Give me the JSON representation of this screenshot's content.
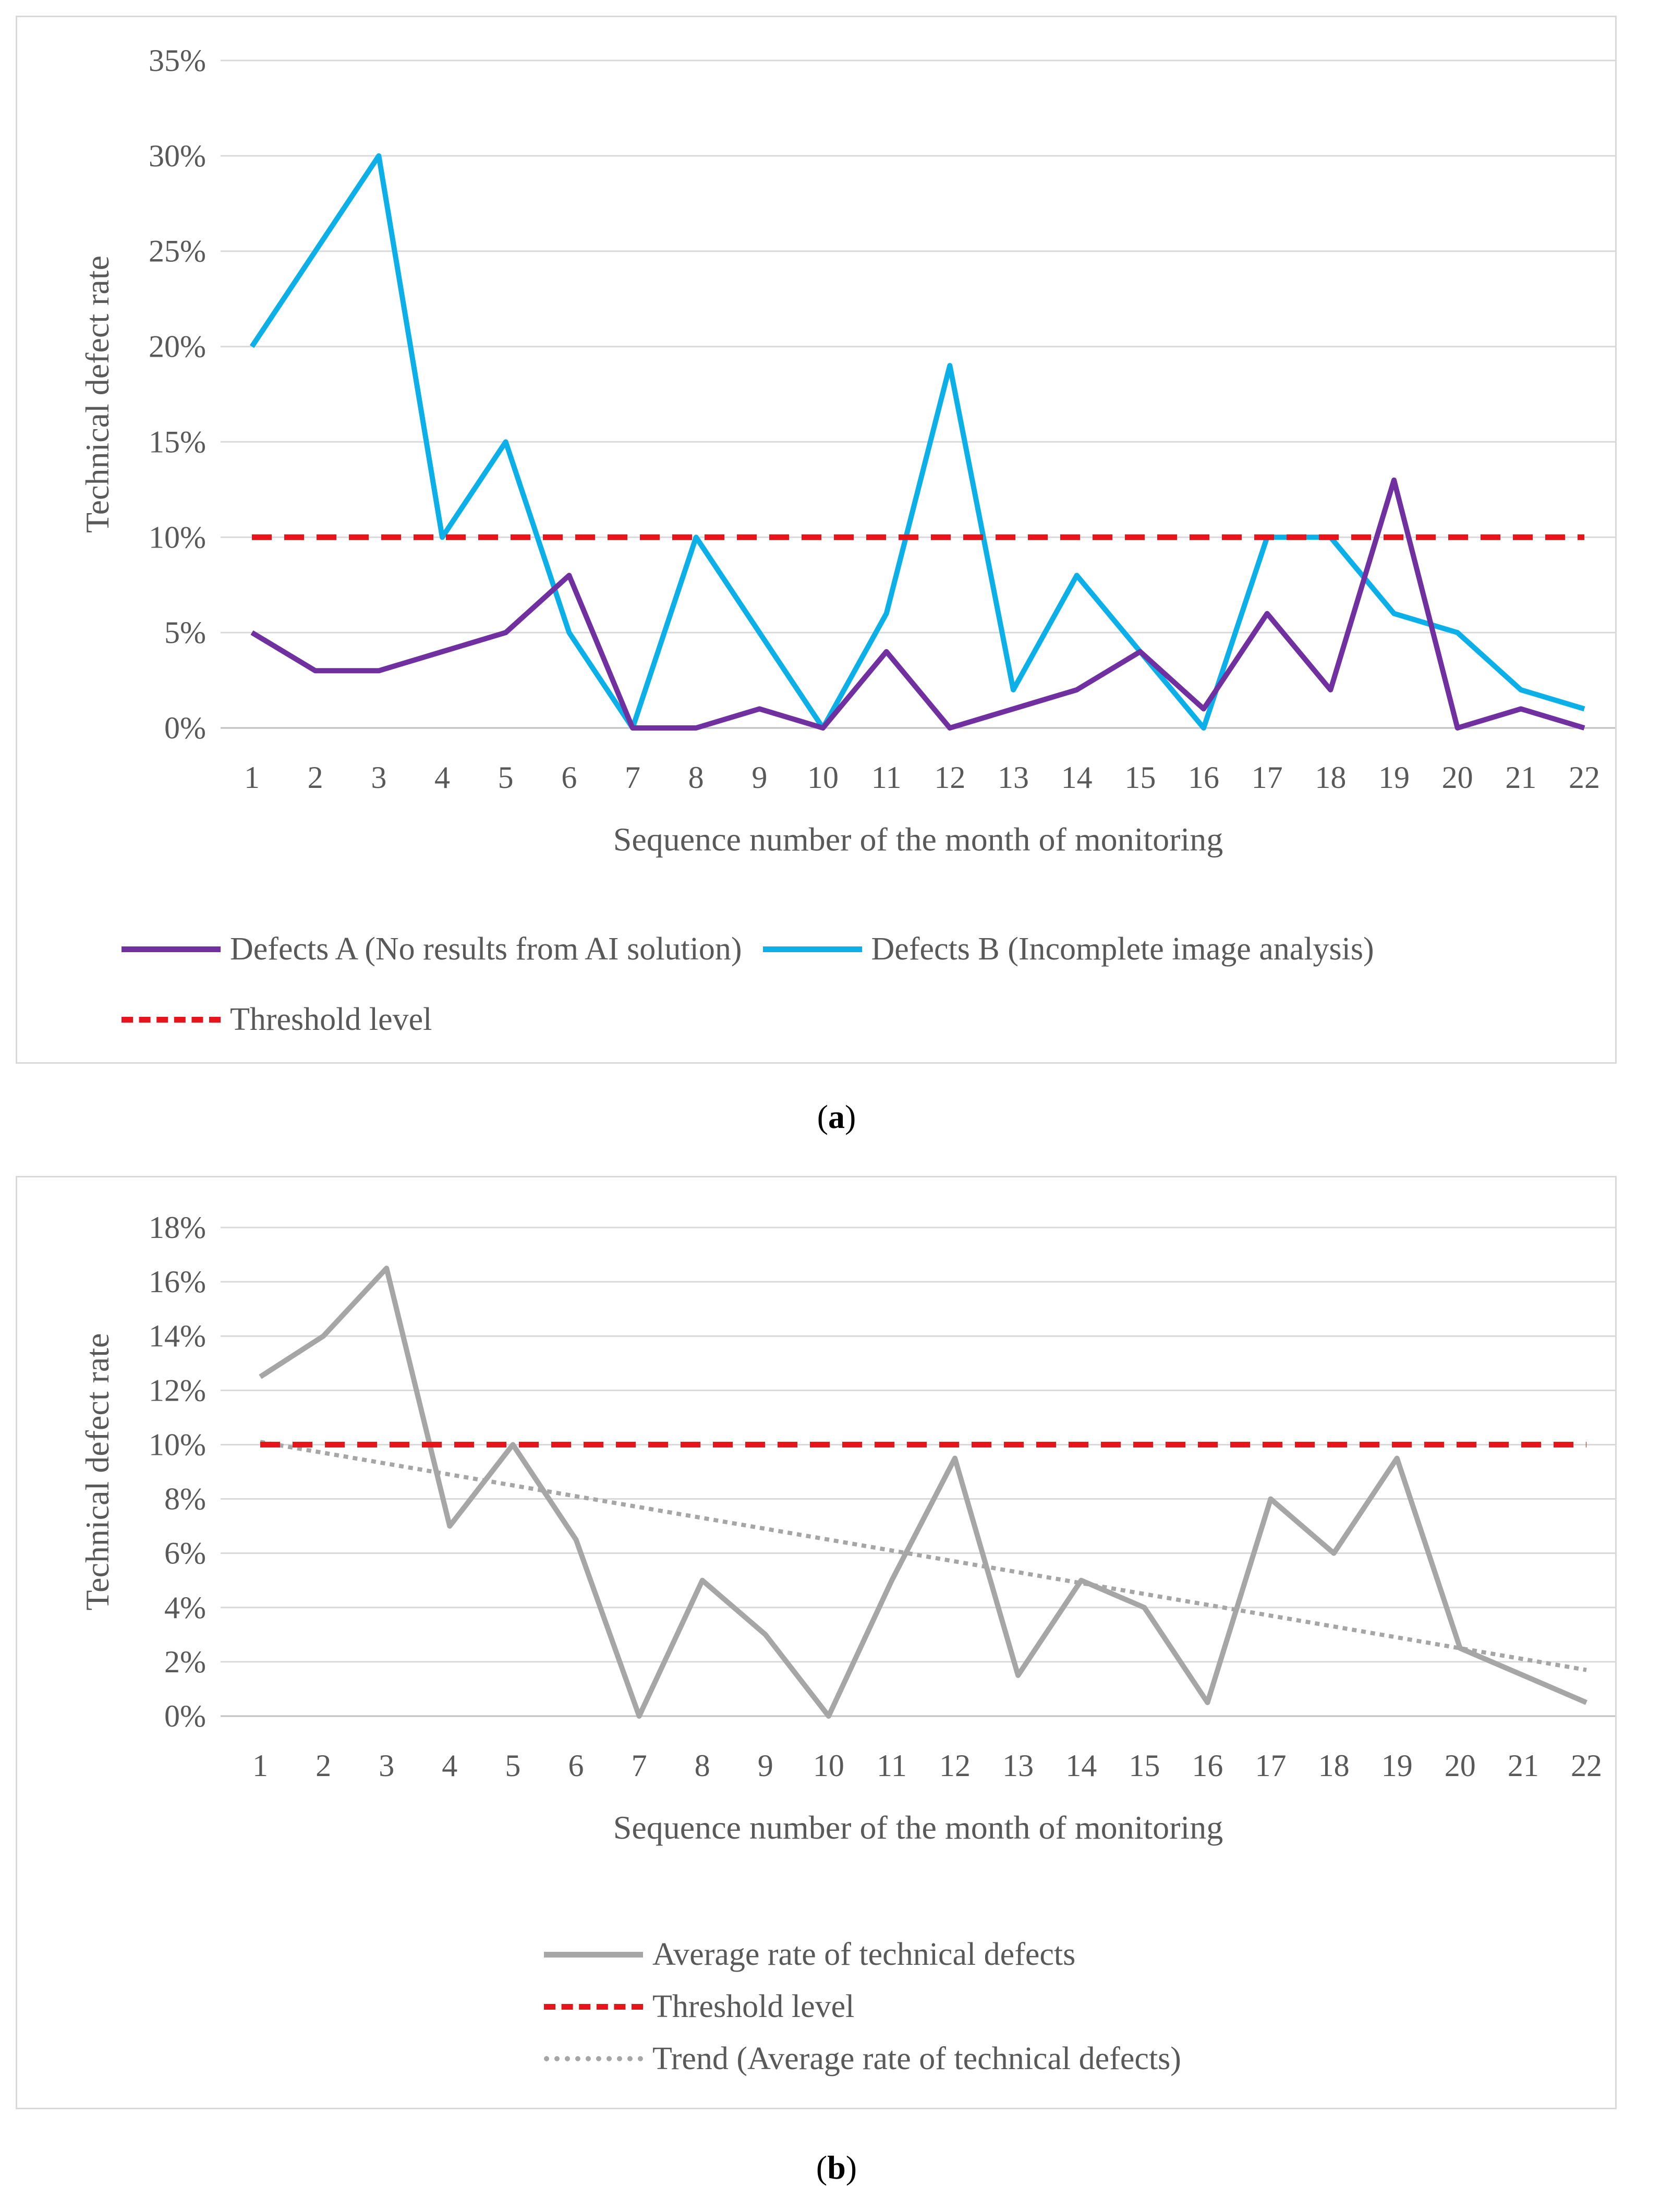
{
  "chart_data": [
    {
      "type": "line",
      "panel": "a",
      "categories": [
        "1",
        "2",
        "3",
        "4",
        "5",
        "6",
        "7",
        "8",
        "9",
        "10",
        "11",
        "12",
        "13",
        "14",
        "15",
        "16",
        "17",
        "18",
        "19",
        "20",
        "21",
        "22"
      ],
      "series": [
        {
          "name": "Defects A (No results from AI solution)",
          "color": "#7030a0",
          "style": "solid",
          "values": [
            5,
            3,
            3,
            4,
            5,
            8,
            0,
            0,
            1,
            0,
            4,
            0,
            1,
            2,
            4,
            1,
            6,
            2,
            13,
            0,
            1,
            0
          ]
        },
        {
          "name": "Defects B (Incomplete image analysis)",
          "color": "#0bb0e8",
          "style": "solid",
          "values": [
            20,
            25,
            30,
            10,
            15,
            5,
            0,
            10,
            5,
            0,
            6,
            19,
            2,
            8,
            4,
            0,
            10,
            10,
            6,
            5,
            2,
            1
          ]
        },
        {
          "name": "Threshold level",
          "color": "#e8141b",
          "style": "dashed",
          "values": [
            10,
            10,
            10,
            10,
            10,
            10,
            10,
            10,
            10,
            10,
            10,
            10,
            10,
            10,
            10,
            10,
            10,
            10,
            10,
            10,
            10,
            10
          ]
        }
      ],
      "xlabel": "Sequence number of the month of monitoring",
      "ylabel": "Technical defect rate",
      "ylim": [
        0,
        35
      ],
      "yticks": [
        "0%",
        "5%",
        "10%",
        "15%",
        "20%",
        "25%",
        "30%",
        "35%"
      ],
      "grid": true,
      "legend_position": "bottom"
    },
    {
      "type": "line",
      "panel": "b",
      "categories": [
        "1",
        "2",
        "3",
        "4",
        "5",
        "6",
        "7",
        "8",
        "9",
        "10",
        "11",
        "12",
        "13",
        "14",
        "15",
        "16",
        "17",
        "18",
        "19",
        "20",
        "21",
        "22"
      ],
      "series": [
        {
          "name": "Average rate of technical defects",
          "color": "#a6a6a6",
          "style": "solid",
          "values": [
            12.5,
            14,
            16.5,
            7,
            10,
            6.5,
            0,
            5,
            3,
            0,
            5,
            9.5,
            1.5,
            5,
            4,
            0.5,
            8,
            6,
            9.5,
            2.5,
            1.5,
            0.5
          ]
        },
        {
          "name": "Threshold level",
          "color": "#e8141b",
          "style": "dashed",
          "values": [
            10,
            10,
            10,
            10,
            10,
            10,
            10,
            10,
            10,
            10,
            10,
            10,
            10,
            10,
            10,
            10,
            10,
            10,
            10,
            10,
            10,
            10
          ]
        },
        {
          "name": "Trend (Average rate of technical defects)",
          "color": "#a6a6a6",
          "style": "dotted",
          "values": [
            10.1,
            9.7,
            9.3,
            8.9,
            8.5,
            8.1,
            7.7,
            7.3,
            6.9,
            6.5,
            6.1,
            5.7,
            5.3,
            4.9,
            4.5,
            4.1,
            3.7,
            3.3,
            2.9,
            2.5,
            2.1,
            1.7
          ]
        }
      ],
      "xlabel": "Sequence number of the month of monitoring",
      "ylabel": "Technical defect rate",
      "ylim": [
        0,
        18
      ],
      "yticks": [
        "0%",
        "2%",
        "4%",
        "6%",
        "8%",
        "10%",
        "12%",
        "14%",
        "16%",
        "18%"
      ],
      "grid": true,
      "legend_position": "bottom"
    }
  ],
  "captions": {
    "a": {
      "open": "(",
      "letter": "a",
      "close": ")"
    },
    "b": {
      "open": "(",
      "letter": "b",
      "close": ")"
    }
  }
}
